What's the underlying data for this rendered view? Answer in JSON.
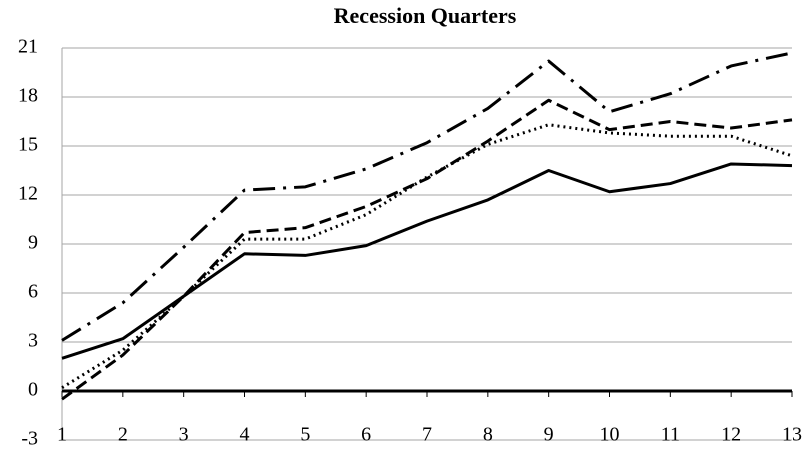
{
  "chart_data": {
    "type": "line",
    "title": "Recession Quarters",
    "x": [
      1,
      2,
      3,
      4,
      5,
      6,
      7,
      8,
      9,
      10,
      11,
      12,
      13
    ],
    "xlim": [
      1,
      13
    ],
    "xticks": [
      1,
      2,
      3,
      4,
      5,
      6,
      7,
      8,
      9,
      10,
      11,
      12,
      13
    ],
    "ylim": [
      -3,
      21
    ],
    "yticks": [
      -3,
      0,
      3,
      6,
      9,
      12,
      15,
      18,
      21
    ],
    "grid": true,
    "series": [
      {
        "color": "#000000",
        "dash": "solid",
        "values": [
          2.0,
          3.2,
          5.8,
          8.4,
          8.3,
          8.9,
          10.4,
          11.7,
          13.5,
          12.2,
          12.7,
          13.9,
          13.8
        ]
      },
      {
        "color": "#000000",
        "dash": "dot",
        "values": [
          0.2,
          2.5,
          5.8,
          9.3,
          9.3,
          10.8,
          13.1,
          15.1,
          16.3,
          15.8,
          15.6,
          15.6,
          14.4
        ]
      },
      {
        "color": "#000000",
        "dash": "dash",
        "values": [
          -0.5,
          2.2,
          5.8,
          9.7,
          10.0,
          11.3,
          13.0,
          15.3,
          17.8,
          16.0,
          16.5,
          16.1,
          16.6
        ]
      },
      {
        "color": "#000000",
        "dash": "dashdot",
        "values": [
          3.1,
          5.4,
          8.8,
          12.3,
          12.5,
          13.6,
          15.2,
          17.3,
          20.2,
          17.1,
          18.2,
          19.9,
          20.7
        ]
      }
    ]
  }
}
